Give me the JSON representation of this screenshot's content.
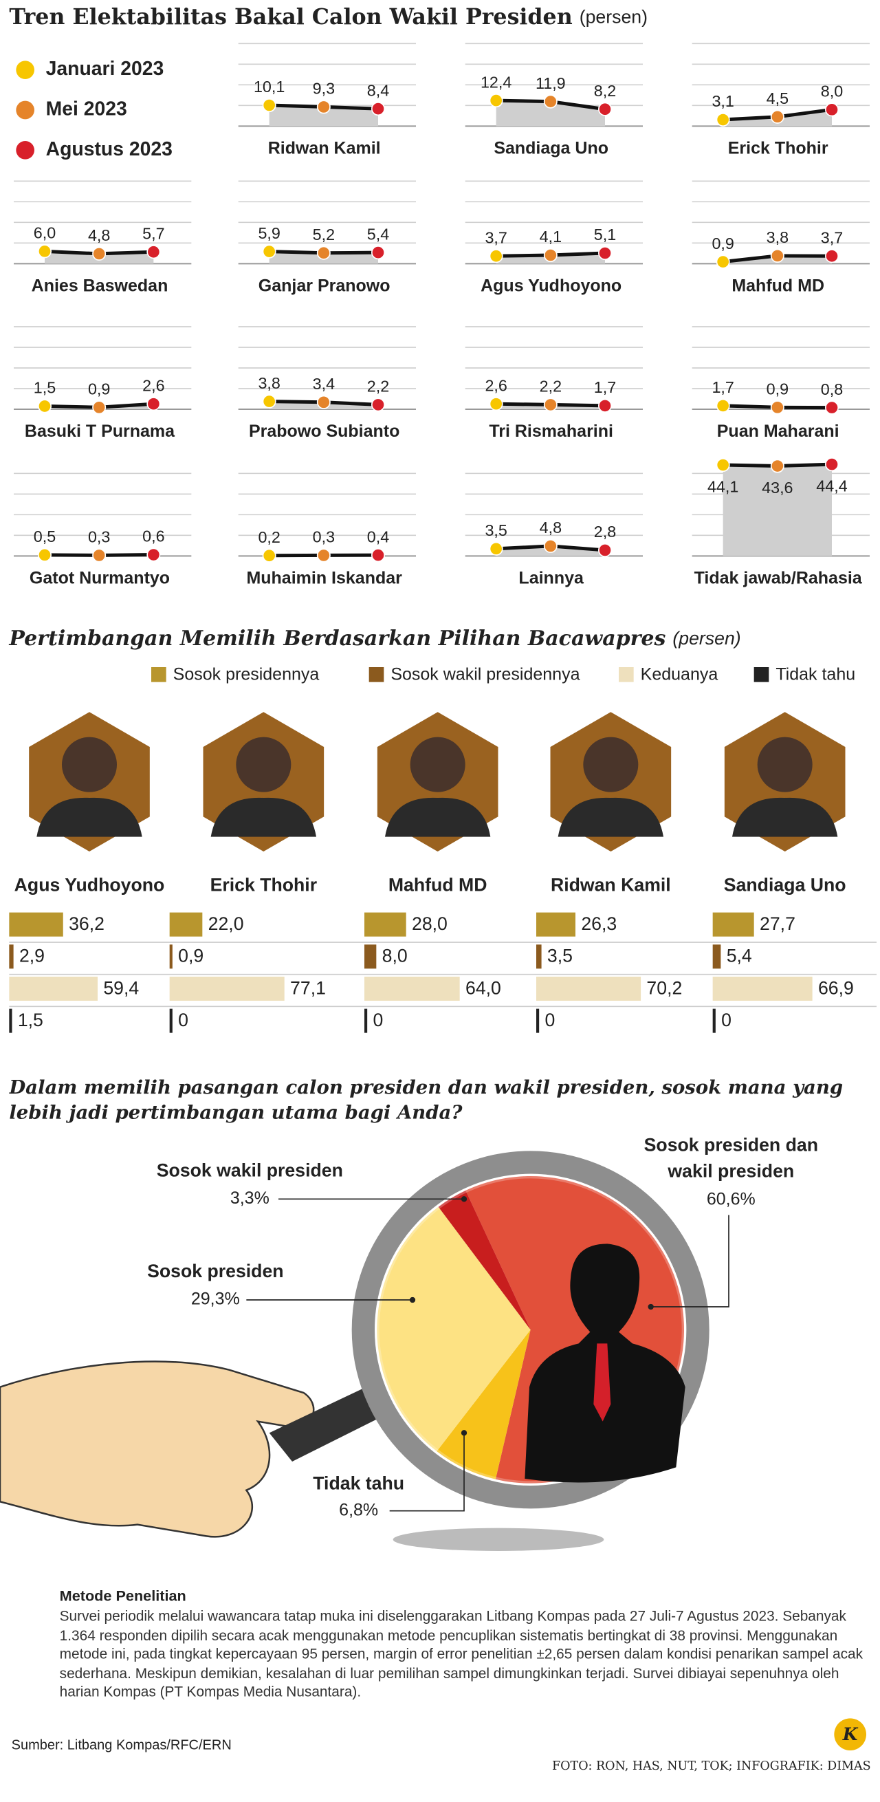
{
  "chart_data": [
    {
      "type": "line",
      "title": "Tren Elektabilitas Bakal Calon Wakil Presiden",
      "subtitle": "(persen)",
      "categories": [
        "Januari 2023",
        "Mei 2023",
        "Agustus 2023"
      ],
      "colors": [
        "#f7c600",
        "#e5842a",
        "#d8202a"
      ],
      "ylim": [
        0,
        45
      ],
      "yticks": [
        0,
        10,
        20,
        30,
        40
      ],
      "grid": true,
      "panels": [
        {
          "name": "Ridwan Kamil",
          "values": [
            10.1,
            9.3,
            8.4
          ],
          "value_labels": [
            "10,1",
            "9,3",
            "8,4"
          ]
        },
        {
          "name": "Sandiaga Uno",
          "values": [
            12.4,
            11.9,
            8.2
          ],
          "value_labels": [
            "12,4",
            "11,9",
            "8,2"
          ]
        },
        {
          "name": "Erick Thohir",
          "values": [
            3.1,
            4.5,
            8.0
          ],
          "value_labels": [
            "3,1",
            "4,5",
            "8,0"
          ]
        },
        {
          "name": "Anies Baswedan",
          "values": [
            6.0,
            4.8,
            5.7
          ],
          "value_labels": [
            "6,0",
            "4,8",
            "5,7"
          ]
        },
        {
          "name": "Ganjar Pranowo",
          "values": [
            5.9,
            5.2,
            5.4
          ],
          "value_labels": [
            "5,9",
            "5,2",
            "5,4"
          ]
        },
        {
          "name": "Agus Yudhoyono",
          "values": [
            3.7,
            4.1,
            5.1
          ],
          "value_labels": [
            "3,7",
            "4,1",
            "5,1"
          ]
        },
        {
          "name": "Mahfud MD",
          "values": [
            0.9,
            3.8,
            3.7
          ],
          "value_labels": [
            "0,9",
            "3,8",
            "3,7"
          ]
        },
        {
          "name": "Basuki T Purnama",
          "values": [
            1.5,
            0.9,
            2.6
          ],
          "value_labels": [
            "1,5",
            "0,9",
            "2,6"
          ]
        },
        {
          "name": "Prabowo Subianto",
          "values": [
            3.8,
            3.4,
            2.2
          ],
          "value_labels": [
            "3,8",
            "3,4",
            "2,2"
          ]
        },
        {
          "name": "Tri Rismaharini",
          "values": [
            2.6,
            2.2,
            1.7
          ],
          "value_labels": [
            "2,6",
            "2,2",
            "1,7"
          ]
        },
        {
          "name": "Puan Maharani",
          "values": [
            1.7,
            0.9,
            0.8
          ],
          "value_labels": [
            "1,7",
            "0,9",
            "0,8"
          ]
        },
        {
          "name": "Gatot Nurmantyo",
          "values": [
            0.5,
            0.3,
            0.6
          ],
          "value_labels": [
            "0,5",
            "0,3",
            "0,6"
          ]
        },
        {
          "name": "Muhaimin Iskandar",
          "values": [
            0.2,
            0.3,
            0.4
          ],
          "value_labels": [
            "0,2",
            "0,3",
            "0,4"
          ]
        },
        {
          "name": "Lainnya",
          "values": [
            3.5,
            4.8,
            2.8
          ],
          "value_labels": [
            "3,5",
            "4,8",
            "2,8"
          ]
        },
        {
          "name": "Tidak jawab/Rahasia",
          "values": [
            44.1,
            43.6,
            44.4
          ],
          "value_labels": [
            "44,1",
            "43,6",
            "44,4"
          ]
        }
      ]
    },
    {
      "type": "bar",
      "title": "Pertimbangan Memilih Berdasarkan Pilihan Bacawapres",
      "subtitle": "(persen)",
      "categories": [
        "Agus Yudhoyono",
        "Erick Thohir",
        "Mahfud MD",
        "Ridwan Kamil",
        "Sandiaga Uno"
      ],
      "series": [
        {
          "name": "Sosok presidennya",
          "color": "#b8962e",
          "values": [
            36.2,
            22.0,
            28.0,
            26.3,
            27.7
          ],
          "value_labels": [
            "36,2",
            "22,0",
            "28,0",
            "26,3",
            "27,7"
          ]
        },
        {
          "name": "Sosok wakil presidennya",
          "color": "#8b5a1e",
          "values": [
            2.9,
            0.9,
            8.0,
            3.5,
            5.4
          ],
          "value_labels": [
            "2,9",
            "0,9",
            "8,0",
            "3,5",
            "5,4"
          ]
        },
        {
          "name": "Keduanya",
          "color": "#eee0bd",
          "values": [
            59.4,
            77.1,
            64.0,
            70.2,
            66.9
          ],
          "value_labels": [
            "59,4",
            "77,1",
            "64,0",
            "70,2",
            "66,9"
          ]
        },
        {
          "name": "Tidak tahu",
          "color": "#222222",
          "values": [
            1.5,
            0,
            0,
            0,
            0
          ],
          "value_labels": [
            "1,5",
            "0",
            "0",
            "0",
            "0"
          ]
        }
      ]
    },
    {
      "type": "pie",
      "title": "Dalam memilih pasangan calon presiden dan wakil presiden, sosok mana yang lebih jadi pertimbangan utama bagi Anda?",
      "categories": [
        "Sosok presiden dan wakil presiden",
        "Tidak tahu",
        "Sosok presiden",
        "Sosok wakil presiden"
      ],
      "values": [
        60.6,
        6.8,
        29.3,
        3.3
      ],
      "value_labels": [
        "60,6%",
        "6,8%",
        "29,3%",
        "3,3%"
      ],
      "colors": [
        "#e2503a",
        "#f7c21a",
        "#fde283",
        "#c81e1e"
      ]
    }
  ],
  "method": {
    "title": "Metode Penelitian",
    "text": "Survei periodik melalui wawancara tatap muka ini diselenggarakan Litbang Kompas pada 27 Juli-7 Agustus 2023. Sebanyak 1.364 responden dipilih secara acak menggunakan metode pencuplikan sistematis bertingkat di 38 provinsi. Menggunakan metode ini, pada tingkat kepercayaan 95 persen, margin of error penelitian ±2,65 persen dalam kondisi penarikan sampel acak sederhana. Meskipun demikian, kesalahan di luar pemilihan sampel dimungkinkan terjadi. Survei dibiayai sepenuhnya oleh harian Kompas (PT Kompas Media Nusantara)."
  },
  "source": "Sumber: Litbang Kompas/RFC/ERN",
  "credit": "FOTO: RON, HAS, NUT, TOK; INFOGRAFIK: DIMAS"
}
